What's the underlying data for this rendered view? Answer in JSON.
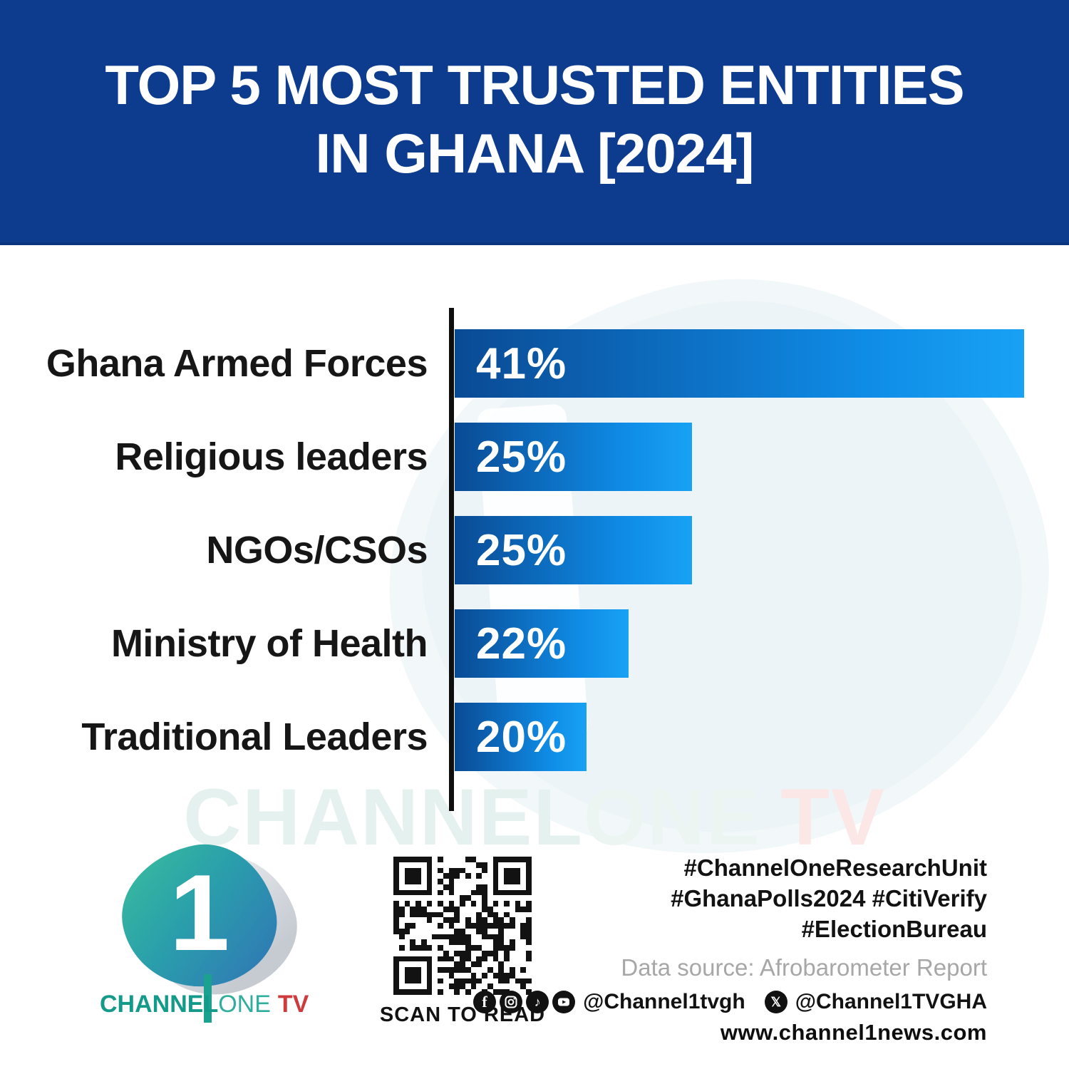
{
  "header": {
    "title_line1": "TOP 5 MOST TRUSTED ENTITIES",
    "title_line2": "IN GHANA [2024]"
  },
  "chart_data": {
    "type": "bar",
    "orientation": "horizontal",
    "title": "Top 5 most trusted entities in Ghana [2024]",
    "categories": [
      "Ghana Armed Forces",
      "Religious leaders",
      "NGOs/CSOs",
      "Ministry of Health",
      "Traditional Leaders"
    ],
    "values": [
      41,
      25,
      25,
      22,
      20
    ],
    "value_labels": [
      "41%",
      "25%",
      "25%",
      "22%",
      "20%"
    ],
    "bar_relative_widths": [
      1.0,
      0.417,
      0.417,
      0.306,
      0.232
    ],
    "bar_gradient_start": "#0a4a94",
    "bar_gradient_end": "#18a2f4",
    "axis_color": "#0e0e0e",
    "grid": false,
    "legend": false
  },
  "watermark": {
    "part1": "CHANNEL",
    "part2": "ONE",
    "part3": "TV"
  },
  "footer": {
    "logo": {
      "digit": "1",
      "wordmark_part1": "CHANNEL",
      "wordmark_part2": "ONE",
      "wordmark_part3": "TV"
    },
    "qr_caption": "SCAN TO READ",
    "hashtags_line1": "#ChannelOneResearchUnit",
    "hashtags_line2": "#GhanaPolls2024 #CitiVerify",
    "hashtags_line3": "#ElectionBureau",
    "data_source": "Data source: Afrobarometer Report",
    "social": {
      "icons": [
        "facebook-icon",
        "instagram-icon",
        "tiktok-icon",
        "youtube-icon",
        "x-icon"
      ],
      "handle_main": "@Channel1tvgh",
      "handle_x": "@Channel1TVGHA"
    },
    "website": "www.channel1news.com"
  },
  "colors": {
    "header_bg": "#0d3c8f",
    "bar_start": "#0a4a94",
    "bar_end": "#18a2f4",
    "label_text": "#161616",
    "logo_teal": "#149a89",
    "logo_red": "#cf3a3c",
    "muted_gray": "#a7a7a7",
    "watermark_teal": "#e4f1ee",
    "watermark_pink": "#fbe7e6"
  }
}
